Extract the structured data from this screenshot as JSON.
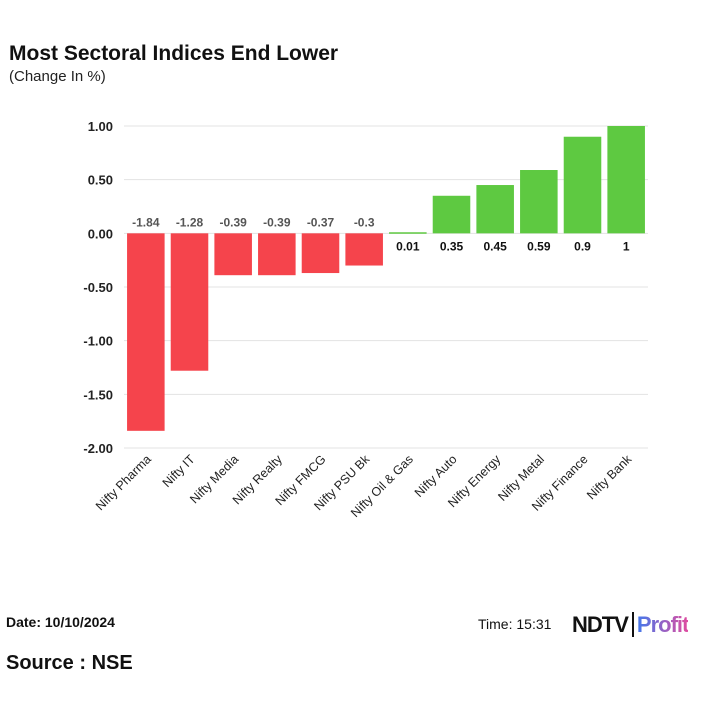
{
  "chart_data": {
    "type": "bar",
    "title": "Most Sectoral Indices End Lower",
    "subtitle": "(Change In %)",
    "categories": [
      "Nifty Pharma",
      "Nifty IT",
      "Nifty Media",
      "Nifty Realty",
      "Nifty FMCG",
      "Nifty PSU Bk",
      "Nifty Oil & Gas",
      "Nifty Auto",
      "Nifty Energy",
      "Nifty Metal",
      "Nifty Finance",
      "Nifty Bank"
    ],
    "values": [
      -1.84,
      -1.28,
      -0.39,
      -0.39,
      -0.37,
      -0.3,
      0.01,
      0.35,
      0.45,
      0.59,
      0.9,
      1
    ],
    "value_labels": [
      "-1.84",
      "-1.28",
      "-0.39",
      "-0.39",
      "-0.37",
      "-0.3",
      "0.01",
      "0.35",
      "0.45",
      "0.59",
      "0.9",
      "1"
    ],
    "yticks": [
      "1.00",
      "0.50",
      "0.00",
      "-0.50",
      "-1.00",
      "-1.50",
      "-2.00"
    ],
    "ylim": [
      -2,
      1
    ],
    "grid": true,
    "colors": {
      "negative": "#f5444c",
      "positive": "#5ec941"
    }
  },
  "footer": {
    "date": "Date: 10/10/2024",
    "time": "Time: 15:31",
    "source": "Source : NSE",
    "logo_left": "NDTV",
    "logo_right": "Profit"
  }
}
